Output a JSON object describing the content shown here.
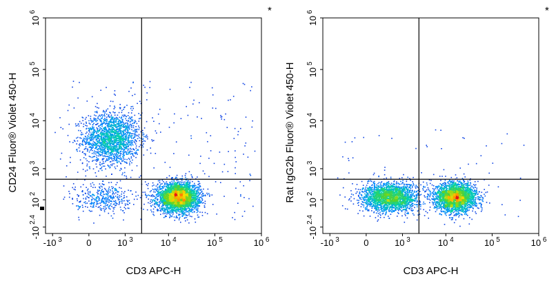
{
  "chart_data": [
    {
      "type": "scatter",
      "subtype": "flow-cytometry-density-dot-plot",
      "corner_mark": "*",
      "xlabel": "CD3 APC-H",
      "ylabel": "CD24  Fluor® Violet 450-H",
      "x_scale": "biexponential",
      "y_scale": "biexponential",
      "x_ticks": [
        {
          "value": -1000,
          "label": "-10",
          "sup": "3"
        },
        {
          "value": 0,
          "label": "0",
          "sup": ""
        },
        {
          "value": 1000,
          "label": "10",
          "sup": "3"
        },
        {
          "value": 10000,
          "label": "10",
          "sup": "4"
        },
        {
          "value": 100000,
          "label": "10",
          "sup": "5"
        },
        {
          "value": 1000000,
          "label": "10",
          "sup": "6"
        }
      ],
      "y_ticks": [
        {
          "value": -251,
          "label": "-10",
          "sup": "2.4"
        },
        {
          "value": 100,
          "label": "10",
          "sup": "2"
        },
        {
          "value": 1000,
          "label": "10",
          "sup": "3"
        },
        {
          "value": 10000,
          "label": "10",
          "sup": "4"
        },
        {
          "value": 100000,
          "label": "10",
          "sup": "5"
        },
        {
          "value": 1000000,
          "label": "10",
          "sup": "6"
        }
      ],
      "quadrant_gate": {
        "x": 2500,
        "y": 550
      },
      "populations": [
        {
          "center": [
            400,
            4500
          ],
          "count": 1800
        },
        {
          "center": [
            16000,
            140
          ],
          "count": 3200
        },
        {
          "center": [
            200,
            140
          ],
          "count": 350
        }
      ]
    },
    {
      "type": "scatter",
      "subtype": "flow-cytometry-density-dot-plot",
      "corner_mark": "*",
      "xlabel": "CD3 APC-H",
      "ylabel": "Rat IgG2b  Fluor® Violet 450-H",
      "x_scale": "biexponential",
      "y_scale": "biexponential",
      "x_ticks": [
        {
          "value": -1000,
          "label": "-10",
          "sup": "3"
        },
        {
          "value": 0,
          "label": "0",
          "sup": ""
        },
        {
          "value": 1000,
          "label": "10",
          "sup": "3"
        },
        {
          "value": 10000,
          "label": "10",
          "sup": "4"
        },
        {
          "value": 100000,
          "label": "10",
          "sup": "5"
        },
        {
          "value": 1000000,
          "label": "10",
          "sup": "6"
        }
      ],
      "y_ticks": [
        {
          "value": -251,
          "label": "-10",
          "sup": "2.4"
        },
        {
          "value": 100,
          "label": "10",
          "sup": "2"
        },
        {
          "value": 1000,
          "label": "10",
          "sup": "3"
        },
        {
          "value": 10000,
          "label": "10",
          "sup": "4"
        },
        {
          "value": 100000,
          "label": "10",
          "sup": "5"
        },
        {
          "value": 1000000,
          "label": "10",
          "sup": "6"
        }
      ],
      "quadrant_gate": {
        "x": 2500,
        "y": 550
      },
      "populations": [
        {
          "center": [
            450,
            140
          ],
          "count": 2200
        },
        {
          "center": [
            16000,
            140
          ],
          "count": 2600
        }
      ]
    }
  ]
}
